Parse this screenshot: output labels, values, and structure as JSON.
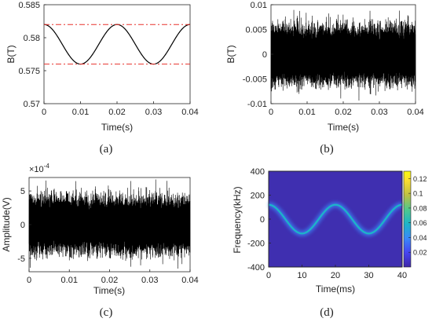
{
  "chart_data": [
    {
      "id": "a",
      "type": "line",
      "caption": "(a)",
      "xlabel": "Time(s)",
      "ylabel": "B(T)",
      "xlim": [
        0,
        0.04
      ],
      "ylim": [
        0.57,
        0.585
      ],
      "x_ticks": [
        "0",
        "0.01",
        "0.02",
        "0.03",
        "0.04"
      ],
      "y_ticks": [
        "0.57",
        "0.575",
        "0.58",
        "0.585"
      ],
      "series": [
        {
          "style": "solid",
          "color": "#000000",
          "function": "sine",
          "mean": 0.579,
          "amplitude": 0.003,
          "period": 0.02,
          "x_max_at": 0.0,
          "key_points": [
            [
              0,
              0.582
            ],
            [
              0.01,
              0.576
            ],
            [
              0.02,
              0.582
            ],
            [
              0.03,
              0.576
            ],
            [
              0.04,
              0.582
            ]
          ]
        },
        {
          "style": "dash-dot",
          "color": "#e8322c",
          "y": 0.582
        },
        {
          "style": "dash-dot",
          "color": "#e8322c",
          "y": 0.576
        }
      ]
    },
    {
      "id": "b",
      "type": "line",
      "caption": "(b)",
      "xlabel": "Time(s)",
      "ylabel": "B(T)",
      "xlim": [
        0,
        0.04
      ],
      "ylim": [
        -0.01,
        0.01
      ],
      "x_ticks": [
        "0",
        "0.01",
        "0.02",
        "0.03",
        "0.04"
      ],
      "y_ticks": [
        "-0.01",
        "-0.005",
        "0",
        "0.005",
        "0.01"
      ],
      "series": [
        {
          "style": "noise",
          "color": "#000000",
          "amplitude": 0.0085
        }
      ]
    },
    {
      "id": "c",
      "type": "line",
      "caption": "(c)",
      "xlabel": "Time(s)",
      "ylabel": "Amplitude(V)",
      "exponent_label": "×10",
      "exponent_power": "-4",
      "xlim": [
        0,
        0.04
      ],
      "ylim": [
        -7,
        7
      ],
      "x_ticks": [
        "0",
        "0.01",
        "0.02",
        "0.03",
        "0.04"
      ],
      "y_ticks": [
        "-5",
        "0",
        "5"
      ],
      "series": [
        {
          "style": "noise",
          "color": "#000000",
          "amplitude": 6
        }
      ]
    },
    {
      "id": "d",
      "type": "heatmap",
      "caption": "(d)",
      "xlabel": "Time(ms)",
      "ylabel": "Frequency(kHz)",
      "xlim": [
        0,
        40
      ],
      "ylim": [
        -400,
        400
      ],
      "x_ticks": [
        "0",
        "10",
        "20",
        "30",
        "40"
      ],
      "y_ticks": [
        "-400",
        "-200",
        "0",
        "200",
        "400"
      ],
      "colorbar_ticks": [
        "0.02",
        "0.04",
        "0.06",
        "0.08",
        "0.1",
        "0.12"
      ],
      "colorbar_range": [
        0,
        0.13
      ],
      "background": "#3f2fb0",
      "ridge": {
        "function": "sine",
        "amplitude_khz": 120,
        "period_ms": 20,
        "x_max_at_ms": 0
      },
      "colormap": [
        "#3e26a8",
        "#4745f1",
        "#3a89f9",
        "#1cb5c8",
        "#4fc98c",
        "#bdbf43",
        "#fadd2f",
        "#f9fb0e"
      ]
    }
  ]
}
